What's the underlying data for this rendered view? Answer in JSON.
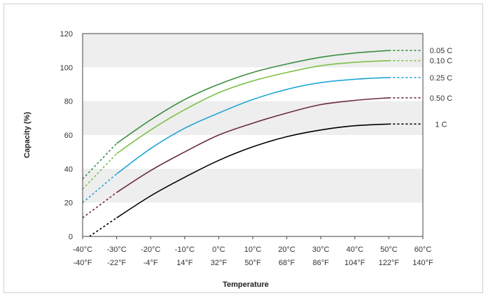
{
  "chart_data": {
    "type": "line",
    "xlabel": "Temperature",
    "ylabel": "Capacity (%)",
    "ylim": [
      0,
      120
    ],
    "xlim": [
      -40,
      60
    ],
    "yticks": [
      0,
      20,
      40,
      60,
      80,
      100,
      120
    ],
    "xticks": [
      {
        "value": -40,
        "celsius": "-40°C",
        "fahrenheit": "-40°F"
      },
      {
        "value": -30,
        "celsius": "-30°C",
        "fahrenheit": "-22°F"
      },
      {
        "value": -20,
        "celsius": "-20°C",
        "fahrenheit": "-4°F"
      },
      {
        "value": -10,
        "celsius": "-10°C",
        "fahrenheit": "14°F"
      },
      {
        "value": 0,
        "celsius": "0°C",
        "fahrenheit": "32°F"
      },
      {
        "value": 10,
        "celsius": "10°C",
        "fahrenheit": "50°F"
      },
      {
        "value": 20,
        "celsius": "20°C",
        "fahrenheit": "68°F"
      },
      {
        "value": 30,
        "celsius": "30°C",
        "fahrenheit": "86°F"
      },
      {
        "value": 40,
        "celsius": "40°C",
        "fahrenheit": "104°F"
      },
      {
        "value": 50,
        "celsius": "50°C",
        "fahrenheit": "122°F"
      },
      {
        "value": 60,
        "celsius": "60°C",
        "fahrenheit": "140°F"
      }
    ],
    "grid": "alternating horizontal bands",
    "band_color": "#eeeeee",
    "legend": "right, labels at line ends",
    "solid_range": [
      -30,
      50
    ],
    "series": [
      {
        "name": "0.05 C",
        "color": "#3a8f3f",
        "x": [
          -40,
          -30,
          -20,
          -10,
          0,
          10,
          20,
          30,
          40,
          50,
          60
        ],
        "y": [
          34,
          55,
          69,
          81,
          90,
          97,
          102,
          106,
          108.5,
          110,
          110
        ]
      },
      {
        "name": "0.10 C",
        "color": "#7cc24a",
        "x": [
          -40,
          -30,
          -20,
          -10,
          0,
          10,
          20,
          30,
          40,
          50,
          60
        ],
        "y": [
          28,
          49,
          63,
          75,
          85,
          92,
          97,
          101,
          103,
          104,
          104
        ]
      },
      {
        "name": "0.25 C",
        "color": "#21a6d4",
        "x": [
          -40,
          -30,
          -20,
          -10,
          0,
          10,
          20,
          30,
          40,
          50,
          60
        ],
        "y": [
          20,
          37,
          52,
          64,
          73,
          81,
          87,
          91,
          93,
          94,
          94
        ]
      },
      {
        "name": "0.50 C",
        "color": "#6b2a47",
        "x": [
          -40,
          -30,
          -20,
          -10,
          0,
          10,
          20,
          30,
          40,
          50,
          60
        ],
        "y": [
          11,
          26,
          39,
          50,
          60,
          67,
          73,
          78,
          80.5,
          82,
          82
        ]
      },
      {
        "name": "1 C",
        "color": "#000000",
        "x": [
          -38,
          -30,
          -20,
          -10,
          0,
          10,
          20,
          30,
          40,
          50,
          60
        ],
        "y": [
          0,
          11,
          24,
          35,
          45,
          53,
          59,
          63,
          65.5,
          66.5,
          66.5
        ]
      }
    ]
  }
}
